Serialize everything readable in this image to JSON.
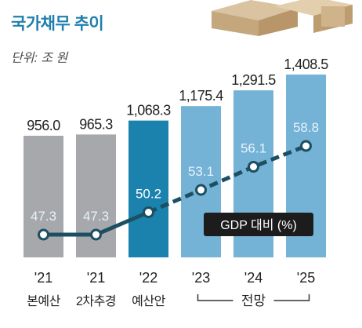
{
  "header": {
    "title": "국가채무 추이",
    "unit": "단위: 조 원"
  },
  "chart_data": {
    "type": "bar",
    "categories": [
      {
        "year": "'21",
        "label": "본예산"
      },
      {
        "year": "'21",
        "label": "2차추경"
      },
      {
        "year": "'22",
        "label": "예산안"
      },
      {
        "year": "'23",
        "label": ""
      },
      {
        "year": "'24",
        "label": ""
      },
      {
        "year": "'25",
        "label": ""
      }
    ],
    "series": [
      {
        "values": [
          956.0,
          965.3,
          1068.3,
          1175.4,
          1291.5,
          1408.5
        ]
      },
      {
        "name": "GDP 대비 (%)",
        "values": [
          47.3,
          47.3,
          50.2,
          53.1,
          56.1,
          58.8
        ]
      }
    ],
    "value_labels": [
      "956.0",
      "965.3",
      "1,068.3",
      "1,175.4",
      "1,291.5",
      "1,408.5"
    ],
    "ratio_labels": [
      "47.3",
      "47.3",
      "50.2",
      "53.1",
      "56.1",
      "58.8"
    ],
    "forecast_label": "전망",
    "legend_label": "GDP 대비 (%)",
    "colors": {
      "actual_bar": "#a6a8ab",
      "budget_bar": "#1a82ad",
      "forecast_bar": "#74b2d6",
      "line": "#1d4f63",
      "title": "#1f7fae"
    }
  }
}
